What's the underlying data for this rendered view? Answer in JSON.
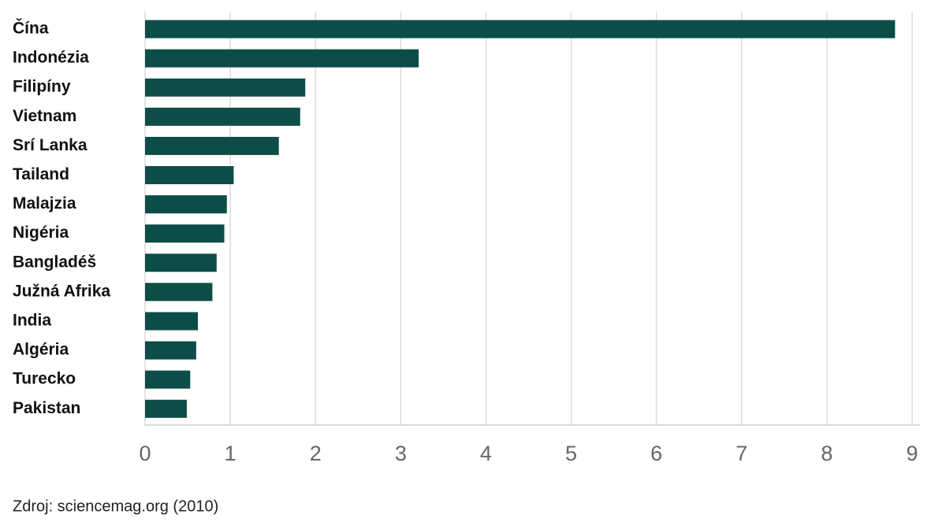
{
  "chart_data": {
    "type": "bar",
    "orientation": "horizontal",
    "categories": [
      "Čína",
      "Indonézia",
      "Filipíny",
      "Vietnam",
      "Srí Lanka",
      "Tailand",
      "Malajzia",
      "Nigéria",
      "Bangladéš",
      "Južná Afrika",
      "India",
      "Algéria",
      "Turecko",
      "Pakistan"
    ],
    "values": [
      8.8,
      3.21,
      1.88,
      1.82,
      1.57,
      1.04,
      0.96,
      0.93,
      0.84,
      0.79,
      0.62,
      0.6,
      0.53,
      0.49
    ],
    "color": "#0d4d47",
    "xlim": [
      0,
      9
    ],
    "xticks": [
      0,
      1,
      2,
      3,
      4,
      5,
      6,
      7,
      8,
      9
    ],
    "grid": true,
    "source": "Zdroj: sciencemag.org (2010)"
  }
}
